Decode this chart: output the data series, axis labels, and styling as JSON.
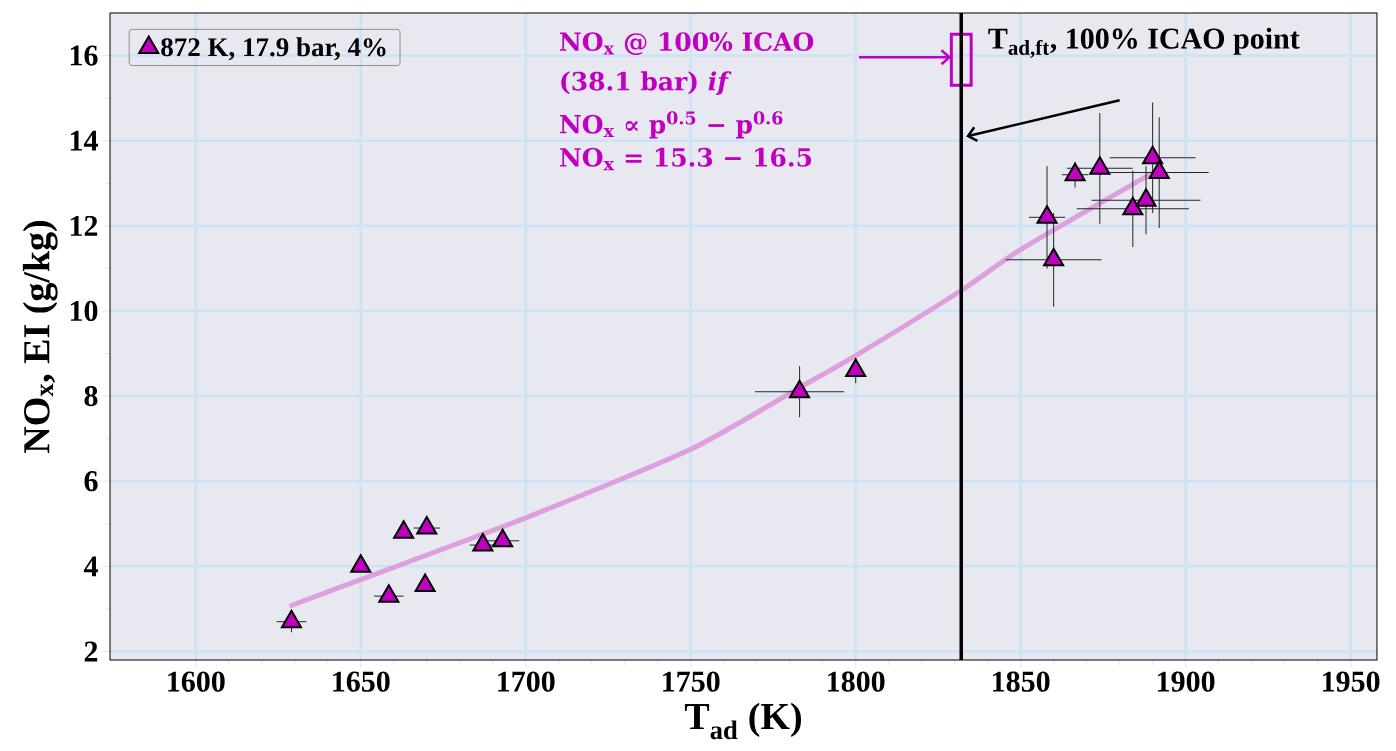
{
  "chart_data": {
    "type": "scatter",
    "xlabel": "T$_{ad}$ (K)",
    "ylabel": "NO$_{x}$, EI (g/kg)",
    "xlim": [
      1574,
      1958
    ],
    "ylim": [
      1.8,
      17
    ],
    "xticks": [
      1600,
      1650,
      1700,
      1750,
      1800,
      1850,
      1900,
      1950
    ],
    "yticks": [
      2,
      4,
      6,
      8,
      10,
      12,
      14,
      16
    ],
    "grid": true,
    "legend": "top left",
    "series": [
      {
        "type": "line",
        "color": "#dda0dd",
        "x": [
          1629,
          1650,
          1700,
          1750,
          1783,
          1800,
          1832,
          1850,
          1892
        ],
        "values": [
          3.08,
          3.69,
          5.14,
          6.75,
          8.2,
          8.95,
          10.48,
          11.44,
          13.33
        ]
      },
      {
        "type": "bar",
        "color": "#c000c0",
        "x": [
          1832
        ],
        "base": [
          15.3
        ],
        "values": [
          1.2
        ]
      },
      {
        "name": "872 K, 17.9 bar, 4%",
        "color": "#c000c0",
        "marker": "triangle",
        "x": [
          1629,
          1650,
          1658.5,
          1663,
          1670,
          1669.5,
          1687,
          1693,
          1783,
          1800,
          1858,
          1860,
          1866.5,
          1874,
          1890,
          1892,
          1884,
          1888
        ],
        "values": [
          2.7,
          4.0,
          3.3,
          4.8,
          4.9,
          3.55,
          4.5,
          4.6,
          8.1,
          8.6,
          12.2,
          11.2,
          13.2,
          13.35,
          13.6,
          13.25,
          12.4,
          12.6
        ],
        "xerrors": [
          4.5,
          null,
          4.5,
          2,
          4,
          null,
          4,
          5,
          13.5,
          null,
          5.5,
          14.5,
          4,
          10,
          13,
          15,
          17,
          16.5
        ],
        "errors": [
          0.25,
          null,
          null,
          null,
          null,
          null,
          null,
          null,
          0.6,
          0.3,
          1.2,
          1.1,
          0.3,
          1.3,
          1.3,
          1.3,
          0.9,
          0.8
        ]
      }
    ],
    "ref_lines": [
      {
        "axis": "x",
        "value": 1832,
        "color": "#000000",
        "label": "T$_{ad,ft}$, 100% ICAO point"
      }
    ],
    "annotations": [
      "NO$_{x}$ @ 100% ICAO",
      "(38.1 bar) *if*",
      "NO$_{x}$ ∝ p$^{0.5}$ − p$^{0.6}$",
      "NO$_{x}$ = 15.3 − 16.5"
    ]
  }
}
